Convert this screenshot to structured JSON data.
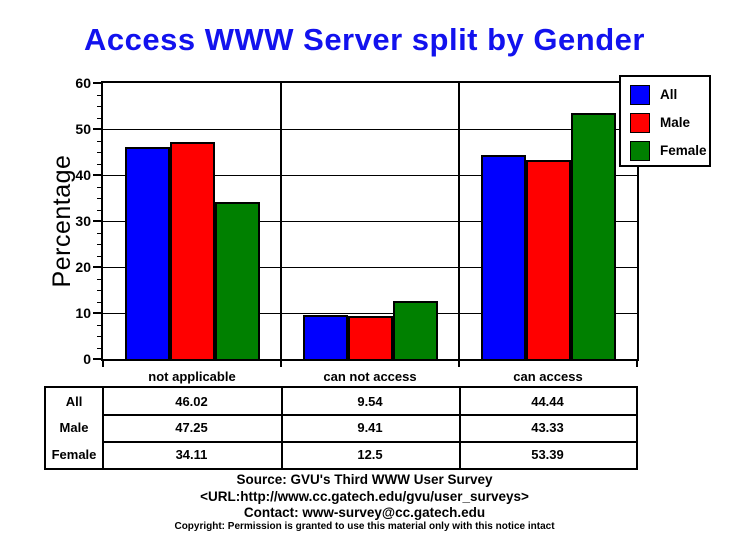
{
  "title": "Access WWW Server split by Gender",
  "colors": {
    "title": "#1212ee",
    "all": "#0000ff",
    "male": "#ff0000",
    "female": "#008000"
  },
  "legend": {
    "items": [
      {
        "label": "All",
        "color": "#0000ff"
      },
      {
        "label": "Male",
        "color": "#ff0000"
      },
      {
        "label": "Female",
        "color": "#008000"
      }
    ]
  },
  "chart_data": {
    "type": "bar",
    "title": "Access WWW Server split by Gender",
    "categories": [
      "not applicable",
      "can not access",
      "can access"
    ],
    "series": [
      {
        "name": "All",
        "color": "#0000ff",
        "values": [
          46.02,
          9.54,
          44.44
        ]
      },
      {
        "name": "Male",
        "color": "#ff0000",
        "values": [
          47.25,
          9.41,
          43.33
        ]
      },
      {
        "name": "Female",
        "color": "#008000",
        "values": [
          34.11,
          12.5,
          53.39
        ]
      }
    ],
    "xlabel": "",
    "ylabel": "Percentage",
    "ylim": [
      0,
      60
    ],
    "y_major_step": 10,
    "y_minor_step": 2.5,
    "grid": true,
    "legend_position": "top-right"
  },
  "table": {
    "row_labels": [
      "All",
      "Male",
      "Female"
    ],
    "columns": [
      "not applicable",
      "can not access",
      "can access"
    ],
    "rows": [
      [
        "46.02",
        "9.54",
        "44.44"
      ],
      [
        "47.25",
        "9.41",
        "43.33"
      ],
      [
        "34.11",
        "12.5",
        "53.39"
      ]
    ]
  },
  "footer": {
    "source": "Source: GVU's Third WWW User Survey",
    "url": "<URL:http://www.cc.gatech.edu/gvu/user_surveys>",
    "contact": "Contact: www-survey@cc.gatech.edu",
    "copyright": "Copyright: Permission is granted to use this material only with this notice intact"
  }
}
